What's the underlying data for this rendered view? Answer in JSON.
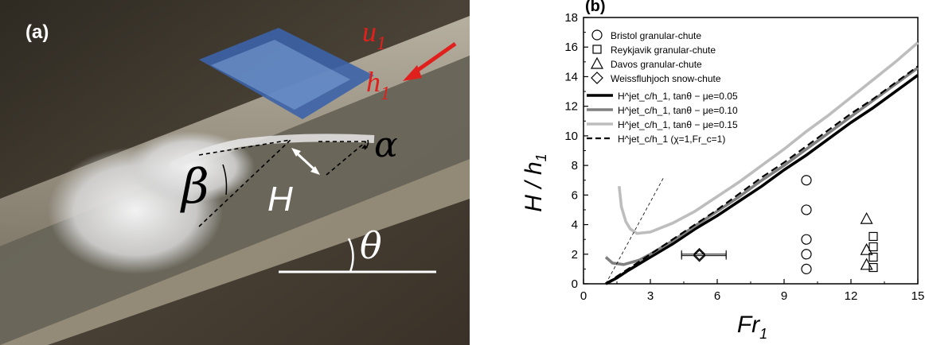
{
  "panel_a": {
    "label": "(a)",
    "u_label": "u",
    "u_sub": "1",
    "h_label": "h",
    "h_sub": "1",
    "alpha_label": "α",
    "beta_label": "β",
    "H_label": "H",
    "theta_label": "θ"
  },
  "panel_b": {
    "label": "(b)"
  },
  "chart_data": {
    "type": "line",
    "xlabel": "Fr",
    "xlabel_sub": "1",
    "ylabel": "H / h",
    "ylabel_sub": "1",
    "xlim": [
      0,
      15
    ],
    "ylim": [
      0,
      18
    ],
    "xticks": [
      0,
      3,
      6,
      9,
      12,
      15
    ],
    "yticks": [
      0,
      2,
      4,
      6,
      8,
      10,
      12,
      14,
      16,
      18
    ],
    "grid": false,
    "legend_position": "top-left",
    "series": [
      {
        "name": "H^jet_c/h_1, tanθ − μe=0.05",
        "color": "#000000",
        "style": "solid",
        "x": [
          1.0,
          1.5,
          2,
          3,
          4,
          5,
          6,
          7,
          8,
          9,
          10,
          11,
          12,
          13,
          14,
          15
        ],
        "y": [
          0.0,
          0.4,
          0.9,
          1.8,
          2.7,
          3.7,
          4.6,
          5.6,
          6.6,
          7.7,
          8.7,
          9.8,
          10.9,
          11.9,
          13.0,
          14.1
        ]
      },
      {
        "name": "H^jet_c/h_1, tanθ − μe=0.10",
        "color": "#808080",
        "style": "solid",
        "x": [
          1.0,
          1.3,
          1.8,
          2.5,
          3,
          4,
          5,
          6,
          7,
          8,
          9,
          10,
          11,
          12,
          13,
          14,
          15
        ],
        "y": [
          1.8,
          1.4,
          1.3,
          1.6,
          2.0,
          2.9,
          3.9,
          4.9,
          5.9,
          7.0,
          8.0,
          9.1,
          10.2,
          11.3,
          12.4,
          13.5,
          14.6
        ]
      },
      {
        "name": "H^jet_c/h_1, tanθ − μe=0.15",
        "color": "#bdbdbd",
        "style": "solid",
        "x": [
          1.6,
          1.7,
          1.9,
          2.1,
          2.4,
          3,
          4,
          5,
          6,
          7,
          8,
          9,
          10,
          11,
          12,
          13,
          14,
          15
        ],
        "y": [
          6.6,
          5.2,
          4.2,
          3.7,
          3.4,
          3.5,
          4.1,
          4.9,
          5.9,
          6.9,
          8.0,
          9.1,
          10.3,
          11.4,
          12.6,
          13.8,
          15.0,
          16.3
        ]
      },
      {
        "name": "H^jet_c/h_1 (χ=1,Fr_c=1)",
        "color": "#000000",
        "style": "dashed",
        "x": [
          1.0,
          2,
          3,
          4,
          5,
          6,
          7,
          8,
          9,
          10,
          11,
          12,
          13,
          14,
          15
        ],
        "y": [
          0.0,
          1.0,
          2.0,
          3.0,
          4.0,
          5.0,
          6.1,
          7.2,
          8.2,
          9.3,
          10.4,
          11.5,
          12.5,
          13.6,
          14.7
        ]
      },
      {
        "name": "",
        "color": "#000000",
        "style": "thin-dashed",
        "x": [
          1.0,
          3.6
        ],
        "y": [
          0.0,
          7.2
        ]
      }
    ],
    "markers": [
      {
        "name": "Bristol granular-chute",
        "symbol": "circle",
        "points": [
          [
            10,
            7
          ],
          [
            10,
            5
          ],
          [
            10,
            3
          ],
          [
            10,
            2
          ],
          [
            10,
            1
          ]
        ]
      },
      {
        "name": "Reykjavik granular-chute",
        "symbol": "square",
        "points": [
          [
            13,
            3.2
          ],
          [
            13,
            2.5
          ],
          [
            13,
            1.8
          ],
          [
            13,
            1.1
          ]
        ]
      },
      {
        "name": "Davos granular-chute",
        "symbol": "triangle",
        "points": [
          [
            12.7,
            4.4
          ],
          [
            12.7,
            2.3
          ],
          [
            12.7,
            1.3
          ]
        ]
      },
      {
        "name": "Weissfluhjoch snow-chute",
        "symbol": "diamond",
        "points": [
          [
            5.2,
            1.9
          ],
          [
            5.2,
            2.0
          ]
        ],
        "xerr": [
          0.8,
          1.2
        ]
      }
    ]
  }
}
